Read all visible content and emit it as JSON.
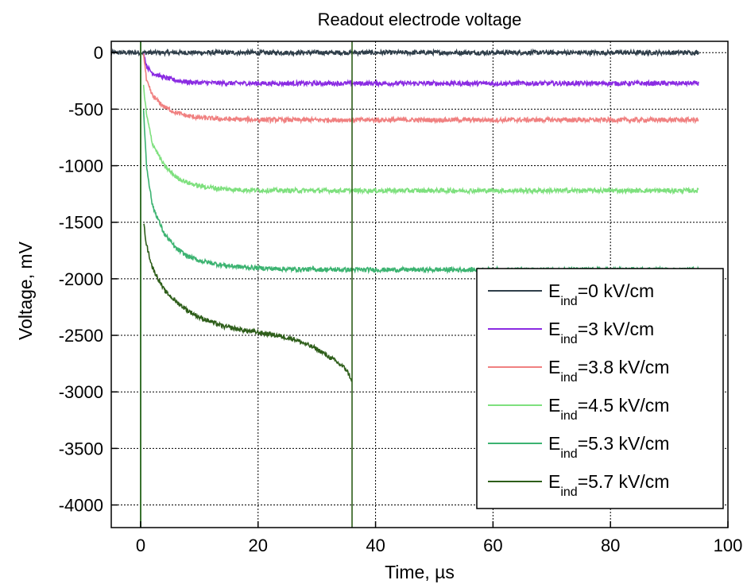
{
  "chart_data": {
    "type": "line",
    "title": "Readout electrode voltage",
    "xlabel": "Time, µs",
    "ylabel": "Voltage, mV",
    "xlim": [
      -5,
      100
    ],
    "ylim": [
      -4200,
      100
    ],
    "xticks": [
      0,
      20,
      40,
      60,
      80,
      100
    ],
    "yticks": [
      0,
      -500,
      -1000,
      -1500,
      -2000,
      -2500,
      -3000,
      -3500,
      -4000
    ],
    "grid": true,
    "legend_position": "bottom-right",
    "series": [
      {
        "name": "E_ind=0 kV/cm",
        "legend_main": "E",
        "legend_sub": "ind",
        "legend_rest": "=0 kV/cm",
        "color": "#2f3e4a",
        "x": [
          -5,
          0,
          10,
          20,
          40,
          60,
          80,
          95
        ],
        "y": [
          0,
          0,
          0,
          0,
          0,
          0,
          0,
          0
        ]
      },
      {
        "name": "E_ind=3 kV/cm",
        "legend_main": "E",
        "legend_sub": "ind",
        "legend_rest": "=3 kV/cm",
        "color": "#8a2be2",
        "x": [
          0.5,
          1,
          2,
          4,
          6,
          8,
          10,
          14,
          20,
          30,
          40,
          60,
          80,
          95
        ],
        "y": [
          0,
          -120,
          -180,
          -220,
          -245,
          -260,
          -265,
          -270,
          -272,
          -272,
          -272,
          -272,
          -272,
          -272
        ]
      },
      {
        "name": "E_ind=3.8 kV/cm",
        "legend_main": "E",
        "legend_sub": "ind",
        "legend_rest": "=3.8 kV/cm",
        "color": "#f08080",
        "x": [
          0.5,
          1,
          2,
          4,
          6,
          8,
          10,
          14,
          18,
          25,
          36,
          50,
          70,
          95
        ],
        "y": [
          0,
          -250,
          -380,
          -480,
          -530,
          -560,
          -575,
          -588,
          -592,
          -595,
          -595,
          -595,
          -595,
          -595
        ]
      },
      {
        "name": "E_ind=4.5 kV/cm",
        "legend_main": "E",
        "legend_sub": "ind",
        "legend_rest": "=4.5 kV/cm",
        "color": "#7ee07e",
        "x": [
          0.5,
          1,
          2,
          4,
          6,
          8,
          10,
          14,
          18,
          25,
          36,
          50,
          70,
          95
        ],
        "y": [
          -300,
          -550,
          -800,
          -1000,
          -1100,
          -1150,
          -1180,
          -1205,
          -1215,
          -1220,
          -1220,
          -1220,
          -1220,
          -1220
        ]
      },
      {
        "name": "E_ind=5.3 kV/cm",
        "legend_main": "E",
        "legend_sub": "ind",
        "legend_rest": "=5.3 kV/cm",
        "color": "#3cb371",
        "x": [
          0.5,
          1,
          2,
          4,
          6,
          8,
          10,
          14,
          18,
          25,
          36,
          50,
          70,
          95
        ],
        "y": [
          -500,
          -1000,
          -1350,
          -1600,
          -1730,
          -1800,
          -1840,
          -1880,
          -1900,
          -1915,
          -1920,
          -1920,
          -1920,
          -1920
        ]
      },
      {
        "name": "E_ind=5.7 kV/cm",
        "legend_main": "E",
        "legend_sub": "ind",
        "legend_rest": "=5.7 kV/cm",
        "color": "#2e5e1a",
        "x": [
          0.5,
          1,
          2,
          4,
          6,
          8,
          10,
          14,
          18,
          22,
          26,
          30,
          33,
          35,
          36
        ],
        "y": [
          -1500,
          -1700,
          -1900,
          -2100,
          -2200,
          -2280,
          -2340,
          -2420,
          -2460,
          -2490,
          -2530,
          -2620,
          -2720,
          -2800,
          -2900
        ]
      }
    ]
  }
}
